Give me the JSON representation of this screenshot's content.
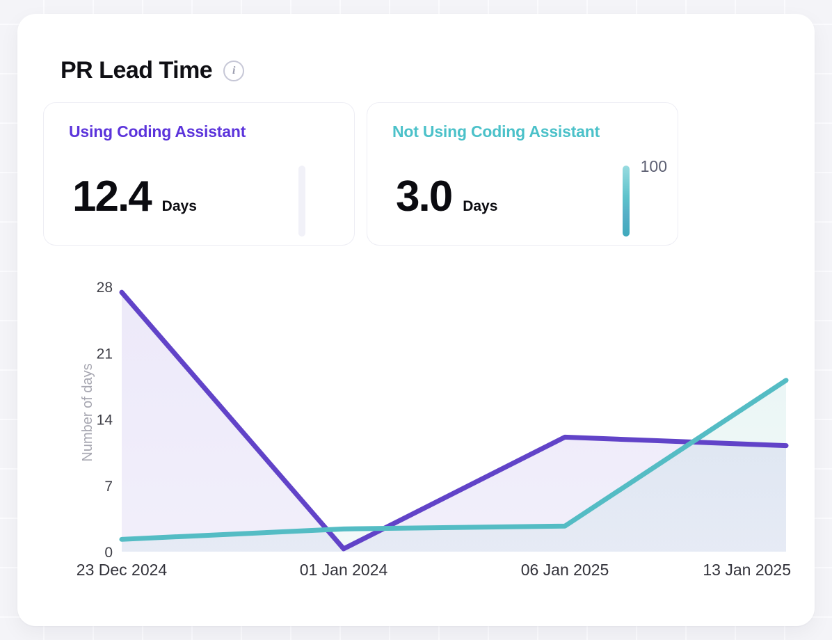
{
  "header": {
    "title": "PR Lead Time"
  },
  "stats": [
    {
      "label": "Using Coding Assistant",
      "value": "12.4",
      "unit": "Days",
      "accent": "#5b33db",
      "gauge_label": ""
    },
    {
      "label": "Not Using Coding Assistant",
      "value": "3.0",
      "unit": "Days",
      "accent": "#4bc1c9",
      "gauge_label": "100"
    }
  ],
  "chart_data": {
    "type": "area",
    "x": [
      "23 Dec 2024",
      "01 Jan 2024",
      "06 Jan 2025",
      "13 Jan 2025"
    ],
    "series": [
      {
        "name": "Using Coding Assistant",
        "color": "#6143c8",
        "values": [
          27.4,
          0.3,
          12.1,
          11.2
        ]
      },
      {
        "name": "Not Using Coding Assistant",
        "color": "#54bcc4",
        "values": [
          1.3,
          2.4,
          2.7,
          18.1
        ]
      }
    ],
    "ylabel": "Number of days",
    "xlabel": "",
    "yticks": [
      0,
      7,
      14,
      21,
      28
    ],
    "ylim": [
      0,
      28
    ],
    "grid": false,
    "legend": "none",
    "area": true
  }
}
